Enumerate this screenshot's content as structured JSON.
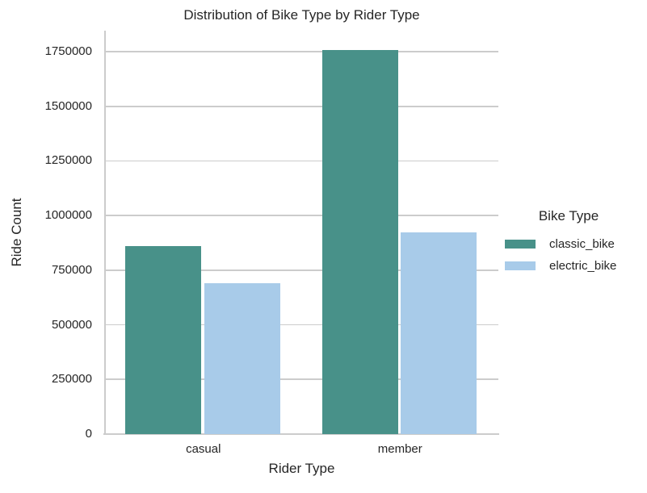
{
  "title": "Distribution of Bike Type by Rider Type",
  "chart_data": {
    "type": "bar",
    "title": "Distribution of Bike Type by Rider Type",
    "xlabel": "Rider Type",
    "ylabel": "Ride Count",
    "categories": [
      "casual",
      "member"
    ],
    "series": [
      {
        "name": "classic_bike",
        "color": "#489189",
        "values": [
          860000,
          1756000
        ]
      },
      {
        "name": "electric_bike",
        "color": "#A8CBE9",
        "values": [
          690000,
          922000
        ]
      }
    ],
    "ylim": [
      0,
      1846000
    ],
    "yticks": [
      0,
      250000,
      500000,
      750000,
      1000000,
      1250000,
      1500000,
      1750000
    ],
    "grid": "horizontal",
    "legend": {
      "title": "Bike Type",
      "position": "right-outside"
    }
  },
  "colors": {
    "classic_bike": "#489189",
    "electric_bike": "#A8CBE9",
    "grid": "#cccccc",
    "spine": "#cccccc",
    "text": "#262626",
    "background": "#ffffff"
  }
}
